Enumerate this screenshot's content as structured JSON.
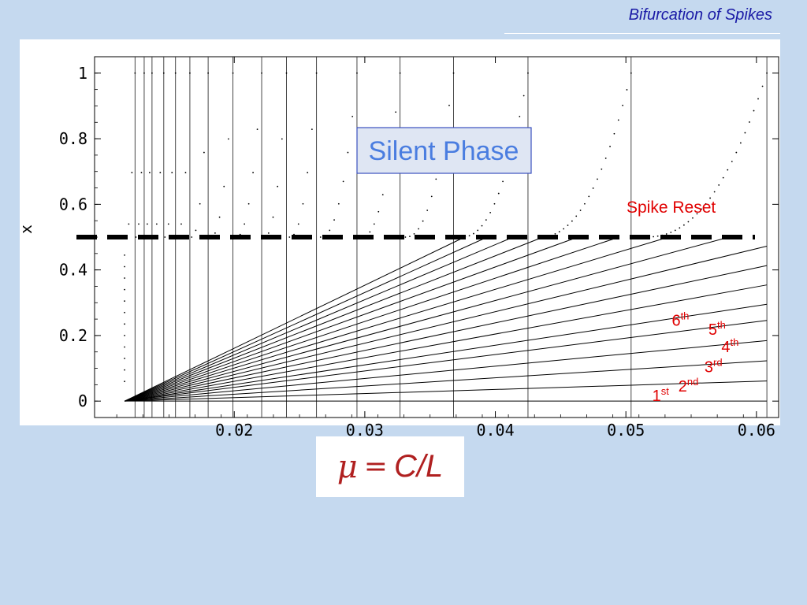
{
  "slide": {
    "title": "Bifurcation of Spikes"
  },
  "formula": {
    "lhs": "μ",
    "eq": "=",
    "rhs": "C/L"
  },
  "chart_data": {
    "type": "scatter",
    "xlabel": "",
    "ylabel": "x",
    "xlim": [
      0.0093,
      0.0617
    ],
    "ylim": [
      -0.05,
      1.05
    ],
    "x_ticks": [
      0.02,
      0.03,
      0.04,
      0.05,
      0.06
    ],
    "x_tick_labels": [
      "0.02",
      "0.03",
      "0.04",
      "0.05",
      "0.06"
    ],
    "y_ticks": [
      0,
      0.2,
      0.4,
      0.6,
      0.8,
      1
    ],
    "y_tick_labels": [
      "0",
      "0.2",
      "0.4",
      "0.6",
      "0.8",
      "1"
    ],
    "x_start": 0.0116,
    "x_end": 0.0608,
    "bifurcation_points": [
      0.0124,
      0.0131,
      0.0137,
      0.0146,
      0.0155,
      0.0166,
      0.018,
      0.0199,
      0.0221,
      0.024,
      0.0263,
      0.0294,
      0.0327,
      0.0368,
      0.0425,
      0.0504,
      0.0608
    ],
    "branch_slopes": [
      0,
      1.25,
      2.5,
      3.75,
      5,
      6,
      7.2,
      8.4,
      9.6,
      10.8,
      12,
      13.2,
      14.4,
      15.6,
      16.8,
      18,
      19.2
    ],
    "spike_reset_level": 0.5,
    "annotations": {
      "silent_phase": "Silent Phase",
      "spike_reset": "Spike Reset",
      "branches": [
        {
          "num": "1",
          "sup": "st"
        },
        {
          "num": "2",
          "sup": "nd"
        },
        {
          "num": "3",
          "sup": "rd"
        },
        {
          "num": "4",
          "sup": "th"
        },
        {
          "num": "5",
          "sup": "th"
        },
        {
          "num": "6",
          "sup": "th"
        }
      ]
    },
    "colors": {
      "curves": "#000000",
      "annotation_red": "#e00000",
      "silent_box_fill": "#dfe6f3",
      "silent_box_border": "#3a4fbf",
      "silent_text": "#4a7de0"
    }
  }
}
